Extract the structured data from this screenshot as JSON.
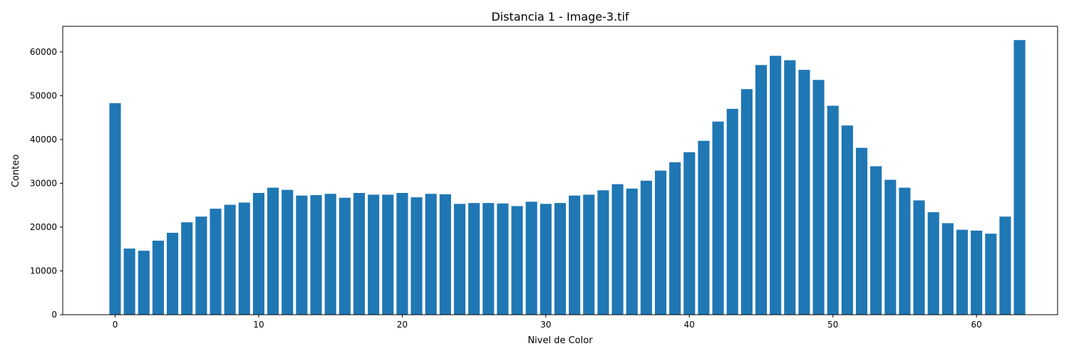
{
  "chart_data": {
    "type": "bar",
    "title": "Distancia 1 - Image-3.tif",
    "xlabel": "Nivel de Color",
    "ylabel": "Conteo",
    "x": [
      0,
      1,
      2,
      3,
      4,
      5,
      6,
      7,
      8,
      9,
      10,
      11,
      12,
      13,
      14,
      15,
      16,
      17,
      18,
      19,
      20,
      21,
      22,
      23,
      24,
      25,
      26,
      27,
      28,
      29,
      30,
      31,
      32,
      33,
      34,
      35,
      36,
      37,
      38,
      39,
      40,
      41,
      42,
      43,
      44,
      45,
      46,
      47,
      48,
      49,
      50,
      51,
      52,
      53,
      54,
      55,
      56,
      57,
      58,
      59,
      60,
      61,
      62,
      63
    ],
    "values": [
      48300,
      15100,
      14600,
      16900,
      18700,
      21100,
      22400,
      24200,
      25100,
      25600,
      27800,
      29000,
      28500,
      27200,
      27300,
      27600,
      26700,
      27800,
      27400,
      27400,
      27800,
      26800,
      27600,
      27500,
      25300,
      25500,
      25500,
      25400,
      24800,
      25800,
      25300,
      25500,
      27200,
      27400,
      28400,
      29800,
      28800,
      30600,
      32900,
      34800,
      37100,
      39700,
      44100,
      47000,
      51500,
      57000,
      59100,
      58100,
      55900,
      53600,
      47700,
      43200,
      38100,
      33900,
      30800,
      29000,
      26100,
      23400,
      20900,
      19400,
      19200,
      18500,
      22400,
      62700
    ],
    "xlim": [
      -3.65,
      65.65
    ],
    "ylim": [
      0,
      65835
    ],
    "xticks": [
      0,
      10,
      20,
      30,
      40,
      50,
      60
    ],
    "yticks": [
      0,
      10000,
      20000,
      30000,
      40000,
      50000,
      60000
    ],
    "bar_color": "#1f77b4",
    "grid": false,
    "legend": "none"
  }
}
